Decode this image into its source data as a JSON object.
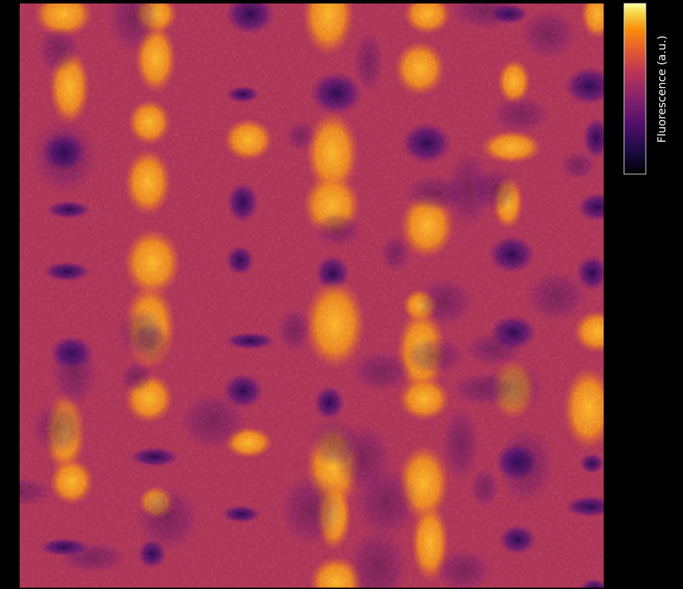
{
  "colorbar": {
    "label": "Fluorescence (a.u.)"
  }
}
